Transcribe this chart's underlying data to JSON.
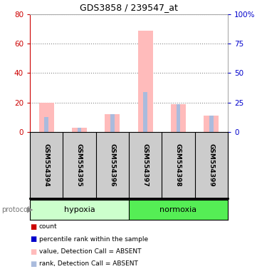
{
  "title": "GDS3858 / 239547_at",
  "samples": [
    "GSM554394",
    "GSM554395",
    "GSM554396",
    "GSM554397",
    "GSM554398",
    "GSM554399"
  ],
  "groups": [
    "hypoxia",
    "hypoxia",
    "hypoxia",
    "normoxia",
    "normoxia",
    "normoxia"
  ],
  "group_labels": [
    "hypoxia",
    "normoxia"
  ],
  "group_colors_light": [
    "#ccffcc",
    "#55ee55"
  ],
  "ylim_left": [
    0,
    80
  ],
  "ylim_right": [
    0,
    100
  ],
  "yticks_left": [
    0,
    20,
    40,
    60,
    80
  ],
  "yticks_right": [
    0,
    25,
    50,
    75,
    100
  ],
  "ytick_labels_right": [
    "0",
    "25",
    "50",
    "75",
    "100%"
  ],
  "pink_bars": [
    20,
    3,
    12,
    69,
    19,
    11
  ],
  "blue_bars": [
    10,
    3,
    12,
    27,
    19,
    11
  ],
  "left_color": "#cc0000",
  "right_color": "#0000cc",
  "pink_color": "#ffbbbb",
  "blue_color": "#aabbdd",
  "grid_color": "#888888",
  "bg_color": "#ffffff",
  "label_box_color": "#cccccc",
  "legend": [
    {
      "color": "#cc0000",
      "label": "count"
    },
    {
      "color": "#0000cc",
      "label": "percentile rank within the sample"
    },
    {
      "color": "#ffbbbb",
      "label": "value, Detection Call = ABSENT"
    },
    {
      "color": "#aabbdd",
      "label": "rank, Detection Call = ABSENT"
    }
  ]
}
